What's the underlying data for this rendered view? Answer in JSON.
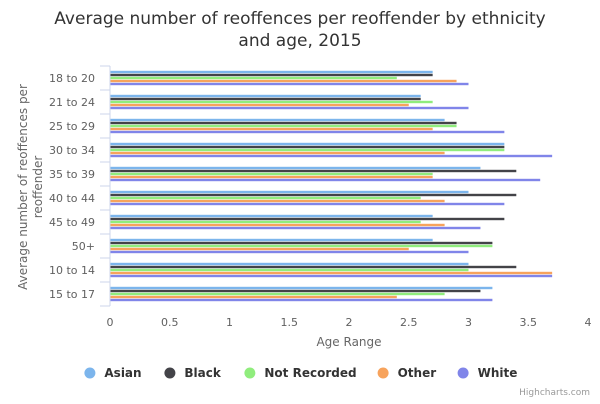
{
  "chart_data": {
    "type": "bar",
    "orientation": "horizontal",
    "title": "Average number of reoffences per reoffender by ethnicity and age, 2015",
    "title_lines": [
      "Average number of reoffences per reoffender by ethnicity",
      "and age, 2015"
    ],
    "ylabel": "Average number of reoffences per reoffender",
    "ylabel_lines": [
      "Average number of reoffences per",
      "reoffender"
    ],
    "xlabel": "Age Range",
    "xlim": [
      0,
      4
    ],
    "xticks": [
      0,
      0.5,
      1,
      1.5,
      2,
      2.5,
      3,
      3.5,
      4
    ],
    "tick_labels": [
      "0",
      "0.5",
      "1",
      "1.5",
      "2",
      "2.5",
      "3",
      "3.5",
      "4"
    ],
    "categories": [
      "18 to 20",
      "21 to 24",
      "25 to 29",
      "30 to 34",
      "35 to 39",
      "40 to 44",
      "45 to 49",
      "50+",
      "10 to 14",
      "15 to 17"
    ],
    "series": [
      {
        "name": "Asian",
        "color": "#7cb5ec",
        "values": [
          2.7,
          2.6,
          2.8,
          3.3,
          3.1,
          3.0,
          2.7,
          2.7,
          3.0,
          3.2
        ]
      },
      {
        "name": "Black",
        "color": "#434348",
        "values": [
          2.7,
          2.6,
          2.9,
          3.3,
          3.4,
          3.4,
          3.3,
          3.2,
          3.4,
          3.1
        ]
      },
      {
        "name": "Not Recorded",
        "color": "#90ed7d",
        "values": [
          2.4,
          2.7,
          2.9,
          3.3,
          2.7,
          2.6,
          2.6,
          3.2,
          3.0,
          2.8
        ]
      },
      {
        "name": "Other",
        "color": "#f7a35c",
        "values": [
          2.9,
          2.5,
          2.7,
          2.8,
          2.7,
          2.8,
          2.8,
          2.5,
          3.7,
          2.4
        ]
      },
      {
        "name": "White",
        "color": "#8085e9",
        "values": [
          3.0,
          3.0,
          3.3,
          3.7,
          3.6,
          3.3,
          3.1,
          3.0,
          3.7,
          3.2
        ]
      }
    ],
    "legend_position": "bottom",
    "grid": false
  },
  "credits": "Highcharts.com"
}
